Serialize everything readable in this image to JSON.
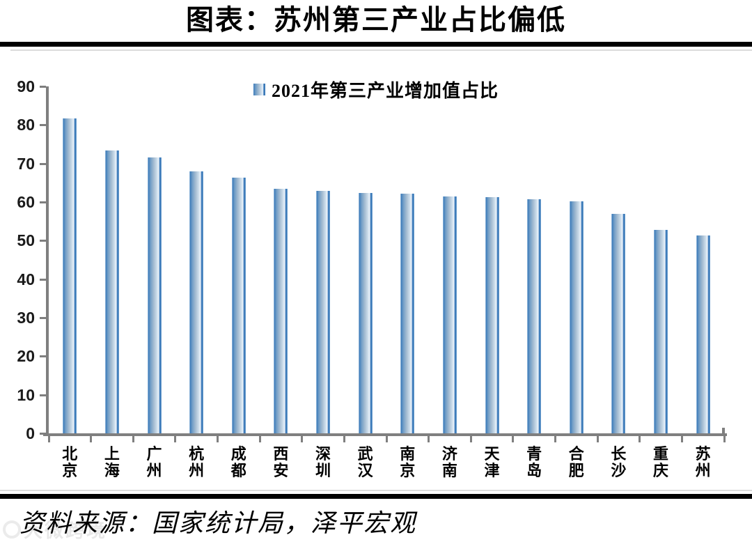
{
  "page": {
    "title": "图表：苏州第三产业占比偏低",
    "source_note": "资料来源：国家统计局，泽平宏观",
    "watermark": "大微跨境"
  },
  "chart_data": {
    "type": "bar",
    "title": "图表：苏州第三产业占比偏低",
    "legend": [
      "2021年第三产业增加值占比"
    ],
    "legend_position": "top-center",
    "categories": [
      "北京",
      "上海",
      "广州",
      "杭州",
      "成都",
      "西安",
      "深圳",
      "武汉",
      "南京",
      "济南",
      "天津",
      "青岛",
      "合肥",
      "长沙",
      "重庆",
      "苏州"
    ],
    "values": [
      81.7,
      73.3,
      71.6,
      67.9,
      66.4,
      63.5,
      62.9,
      62.3,
      62.1,
      61.5,
      61.3,
      60.7,
      60.2,
      57.0,
      52.8,
      51.3
    ],
    "xlabel": "",
    "ylabel": "",
    "ylim": [
      0,
      90
    ],
    "ytick_step": 10,
    "grid": false,
    "colors": {
      "bar_edge": "#2e72b5",
      "bar_mid": "#a6bdd2",
      "bar_highlight": "#eef5fb",
      "axis": "#7f7f7f",
      "rule": "#000000",
      "thin_rule": "#dcdcdc"
    }
  }
}
